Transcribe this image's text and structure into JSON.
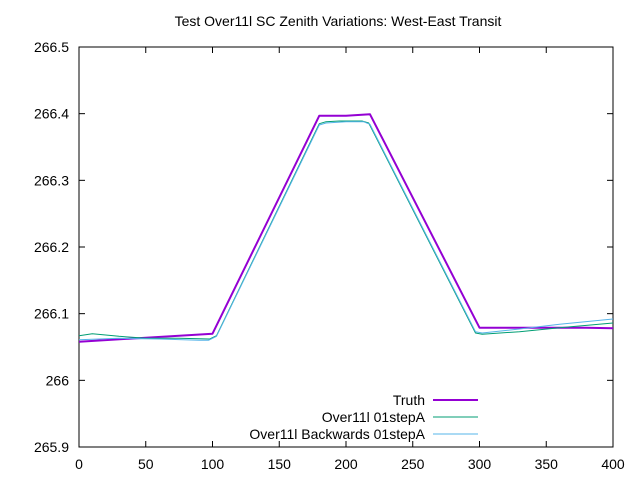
{
  "chart_data": {
    "type": "line",
    "title": "Test Over11l SC Zenith Variations: West-East Transit",
    "xlabel": "",
    "ylabel": "",
    "xlim": [
      0,
      400
    ],
    "ylim": [
      265.9,
      266.5
    ],
    "x_ticks": [
      "0",
      "50",
      "100",
      "150",
      "200",
      "250",
      "300",
      "350",
      "400"
    ],
    "y_ticks": [
      "265.9",
      "266",
      "266.1",
      "266.2",
      "266.3",
      "266.4",
      "266.5"
    ],
    "grid": false,
    "legend_position": "bottom-right",
    "series": [
      {
        "name": "Truth",
        "color": "#9400d3",
        "x": [
          0,
          100,
          180,
          200,
          218,
          300,
          380,
          400
        ],
        "y": [
          266.058,
          266.07,
          266.397,
          266.397,
          266.399,
          266.079,
          266.079,
          266.078
        ]
      },
      {
        "name": "Over11l 01stepA",
        "color": "#009e73",
        "x": [
          0,
          10,
          30,
          50,
          75,
          98,
          103,
          180,
          185,
          195,
          212,
          217,
          297,
          302,
          330,
          360,
          400
        ],
        "y": [
          266.067,
          266.07,
          266.066,
          266.063,
          266.063,
          266.062,
          266.067,
          266.385,
          266.388,
          266.389,
          266.389,
          266.386,
          266.071,
          266.069,
          266.073,
          266.079,
          266.086
        ]
      },
      {
        "name": "Over11l Backwards 01stepA",
        "color": "#56b4e9",
        "x": [
          0,
          30,
          60,
          90,
          97,
          103,
          180,
          185,
          200,
          213,
          218,
          297,
          302,
          330,
          360,
          400
        ],
        "y": [
          266.061,
          266.063,
          266.062,
          266.06,
          266.06,
          266.066,
          266.383,
          266.386,
          266.388,
          266.388,
          266.384,
          266.073,
          266.071,
          266.077,
          266.084,
          266.092
        ]
      }
    ]
  }
}
